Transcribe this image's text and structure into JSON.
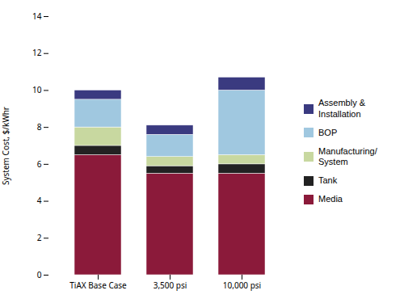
{
  "chart_data": {
    "type": "bar",
    "stacked": true,
    "categories": [
      "TiAX Base Case",
      "3,500 psi",
      "10,000 psi"
    ],
    "series": [
      {
        "name": "Media",
        "color": "#8b1a3a",
        "values": [
          6.5,
          5.5,
          5.5
        ]
      },
      {
        "name": "Tank",
        "color": "#222222",
        "values": [
          0.5,
          0.4,
          0.5
        ]
      },
      {
        "name": "Manufacturing/\nSystem",
        "color": "#c8d8a0",
        "values": [
          1.0,
          0.5,
          0.5
        ]
      },
      {
        "name": "BOP",
        "color": "#a0c8e0",
        "values": [
          1.5,
          1.2,
          3.5
        ]
      },
      {
        "name": "Assembly &\nInstallation",
        "color": "#3a3a80",
        "values": [
          0.5,
          0.5,
          0.7
        ]
      }
    ],
    "ylabel": "System Cost, $/kWhr",
    "ylim": [
      0,
      14
    ],
    "yticks": [
      0,
      2,
      4,
      6,
      8,
      10,
      12,
      14
    ],
    "legend": "right"
  }
}
